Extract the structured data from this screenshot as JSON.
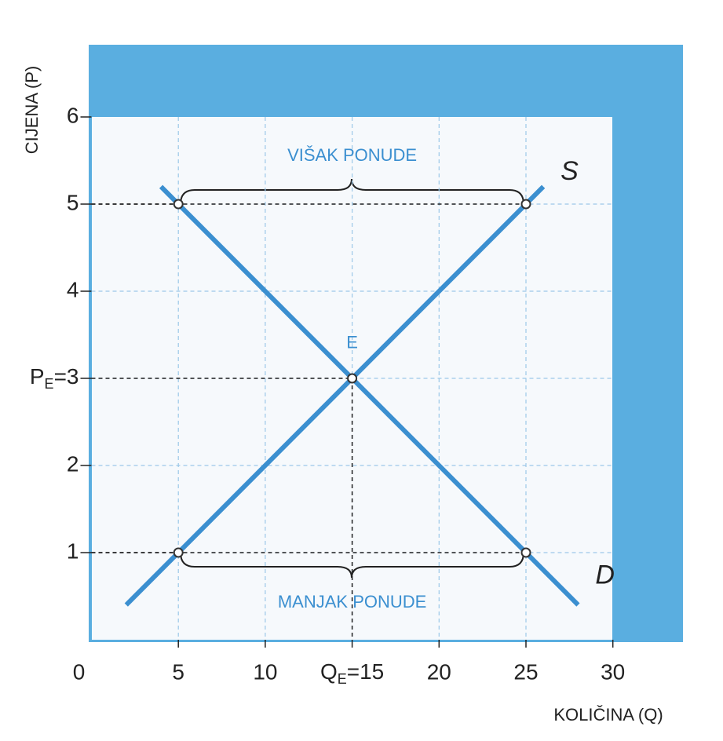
{
  "chart_data": {
    "type": "line",
    "y_label": "CIJENA (P)",
    "x_label": "KOLIČINA (Q)",
    "xlim": [
      0,
      30
    ],
    "ylim": [
      0,
      6
    ],
    "xticks": [
      0,
      5,
      10,
      {
        "value": 15,
        "label": "QE=15"
      },
      20,
      25,
      30
    ],
    "yticks": [
      1,
      2,
      {
        "value": 3,
        "label": "PE=3"
      },
      4,
      5,
      6
    ],
    "grid": true,
    "series": [
      {
        "name": "S",
        "color": "#3b8fd0",
        "x": [
          2,
          26
        ],
        "values": [
          0.4,
          5.2
        ]
      },
      {
        "name": "D",
        "color": "#3b8fd0",
        "x": [
          4,
          28
        ],
        "values": [
          5.2,
          0.4
        ]
      }
    ],
    "points": {
      "x": [
        5,
        25,
        15,
        5,
        25
      ],
      "values": [
        5,
        5,
        3,
        1,
        1
      ]
    },
    "annotations": [
      {
        "text": "VIŠAK PONUDE",
        "x": 15,
        "y": 5.55
      },
      {
        "text": "MANJAK PONUDE",
        "x": 15,
        "y": 0.42
      },
      {
        "text": "E",
        "x": 15,
        "y": 3.4
      }
    ]
  }
}
